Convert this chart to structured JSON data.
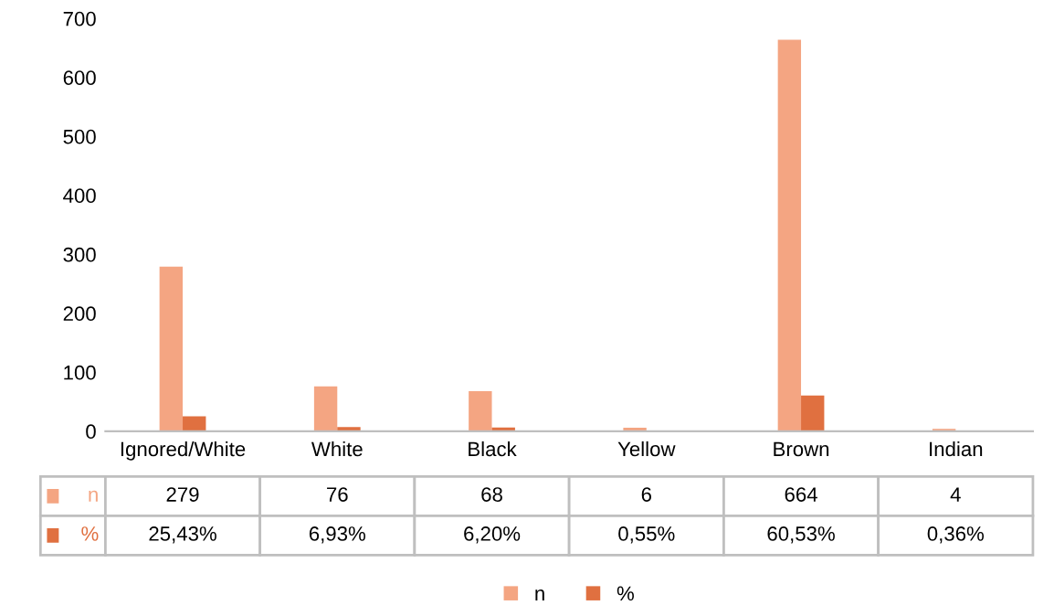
{
  "chart_data": {
    "type": "bar",
    "categories": [
      "Ignored/White",
      "White",
      "Black",
      "Yellow",
      "Brown",
      "Indian"
    ],
    "series": [
      {
        "name": "n",
        "color": "#f4a582",
        "values": [
          279,
          76,
          68,
          6,
          664,
          4
        ],
        "value_labels": [
          "279",
          "76",
          "68",
          "6",
          "664",
          "4"
        ]
      },
      {
        "name": "%",
        "color": "#e07040",
        "values": [
          25.43,
          6.93,
          6.2,
          0.55,
          60.53,
          0.36
        ],
        "value_labels": [
          "25,43%",
          "6,93%",
          "6,20%",
          "0,55%",
          "60,53%",
          "0,36%"
        ]
      }
    ],
    "ylim": [
      0,
      700
    ],
    "yticks": [
      0,
      100,
      200,
      300,
      400,
      500,
      600,
      700
    ],
    "grid": false,
    "legend": "bottom"
  }
}
